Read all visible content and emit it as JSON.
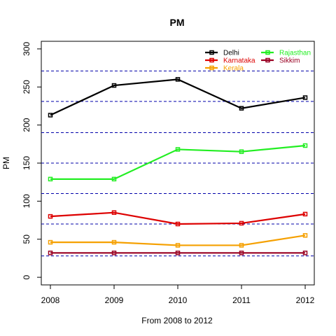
{
  "chart_data": {
    "type": "line",
    "title": "PM",
    "xlabel": "From 2008 to 2012",
    "ylabel": "PM",
    "x": [
      "2008",
      "2009",
      "2010",
      "2011",
      "2012"
    ],
    "yticks": [
      0,
      50,
      100,
      150,
      200,
      250,
      300
    ],
    "ylim": [
      -10,
      310
    ],
    "grid": false,
    "reference_lines": [
      28,
      70,
      110,
      150,
      190,
      231,
      271
    ],
    "reference_line_color": "#0000aa",
    "legend_position": "top-right",
    "series": [
      {
        "name": "Delhi",
        "color": "#000000",
        "values": [
          213,
          252,
          260,
          222,
          236
        ]
      },
      {
        "name": "Karnataka",
        "color": "#dd0000",
        "values": [
          80,
          85,
          70,
          71,
          83
        ]
      },
      {
        "name": "Kerala",
        "color": "#f5a000",
        "values": [
          46,
          46,
          42,
          42,
          55
        ]
      },
      {
        "name": "Rajasthan",
        "color": "#22ee22",
        "values": [
          129,
          129,
          168,
          165,
          173
        ]
      },
      {
        "name": "Sikkim",
        "color": "#990022",
        "values": [
          32,
          32,
          32,
          32,
          32
        ]
      }
    ]
  }
}
